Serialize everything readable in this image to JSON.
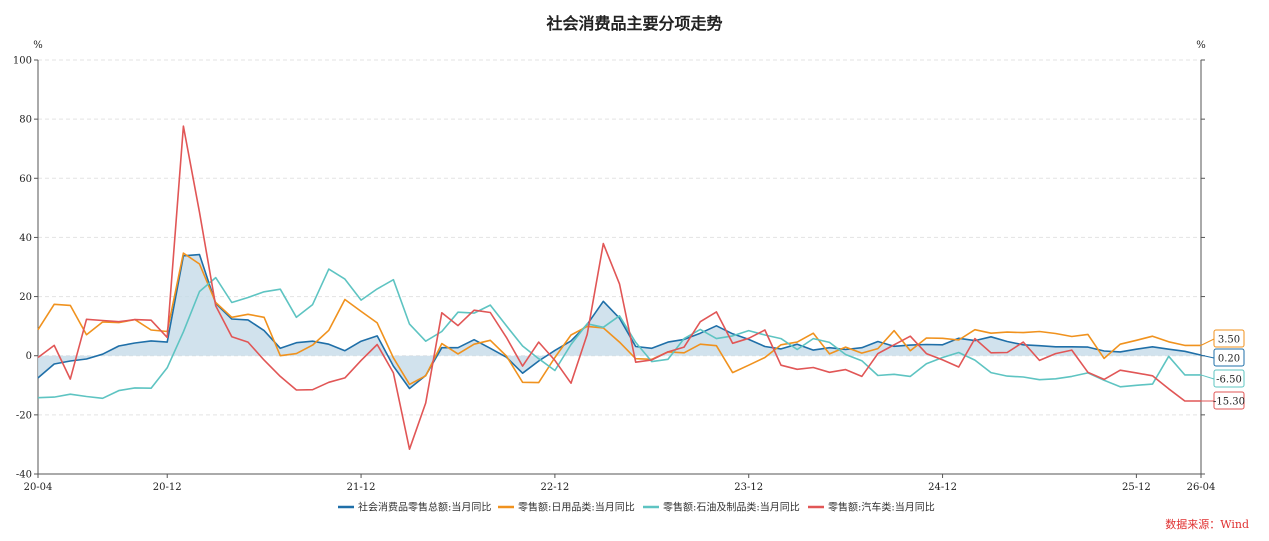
{
  "title": "社会消费品主要分项走势",
  "source": "数据来源：Wind",
  "chart_data": {
    "type": "line",
    "title": "社会消费品主要分项走势",
    "ylabel_left": "%",
    "ylabel_right": "%",
    "ylim": [
      -40,
      100
    ],
    "yticks": [
      100,
      80,
      60,
      40,
      20,
      0,
      -20,
      -40
    ],
    "grid": true,
    "legend_position": "bottom",
    "x_tick_labels": [
      {
        "label": "20-04",
        "index": 0
      },
      {
        "label": "20-12",
        "index": 8
      },
      {
        "label": "21-12",
        "index": 20
      },
      {
        "label": "22-12",
        "index": 32
      },
      {
        "label": "23-12",
        "index": 44
      },
      {
        "label": "24-12",
        "index": 56
      },
      {
        "label": "25-12",
        "index": 68
      },
      {
        "label": "26-04",
        "index": 72
      }
    ],
    "n_points": 73,
    "series": [
      {
        "name": "社会消费品零售总额:当月同比",
        "color": "#1f6fa8",
        "area": true,
        "end_label": "0.20",
        "values": [
          -7.5,
          -2.8,
          -1.8,
          -1.1,
          0.5,
          3.3,
          4.3,
          5.0,
          4.6,
          33.8,
          34.2,
          17.7,
          12.4,
          12.1,
          8.5,
          2.5,
          4.4,
          4.9,
          3.9,
          1.7,
          4.9,
          6.7,
          -3.5,
          -11.1,
          -6.7,
          2.7,
          2.7,
          5.4,
          2.5,
          -0.5,
          -5.9,
          -1.8,
          1.8,
          5.0,
          10.6,
          18.4,
          12.7,
          3.1,
          2.5,
          4.6,
          5.5,
          7.6,
          10.1,
          7.4,
          5.5,
          3.1,
          2.3,
          3.9,
          1.9,
          2.7,
          2.1,
          2.7,
          4.8,
          3.2,
          3.6,
          3.8,
          3.7,
          5.9,
          5.1,
          6.4,
          4.8,
          3.7,
          3.4,
          3.0,
          3.0,
          2.9,
          1.6,
          1.3,
          2.2,
          3.0,
          2.2,
          1.5,
          0.2
        ]
      },
      {
        "name": "零售额:日用品类:当月同比",
        "color": "#f0921e",
        "area": false,
        "end_label": "3.50",
        "values": [
          8.8,
          17.4,
          17.0,
          7.1,
          11.4,
          11.2,
          12.2,
          8.7,
          8.2,
          34.7,
          31.0,
          18.0,
          13.0,
          14.0,
          13.0,
          0.0,
          0.7,
          3.6,
          8.6,
          19.0,
          15.0,
          11.1,
          -0.7,
          -9.7,
          -6.8,
          4.1,
          0.6,
          3.9,
          5.2,
          -0.1,
          -9.0,
          -9.1,
          -0.6,
          7.0,
          9.9,
          9.4,
          4.6,
          -1.0,
          -1.2,
          1.3,
          1.0,
          3.9,
          3.4,
          -5.7,
          -3.2,
          -0.6,
          3.7,
          4.6,
          7.6,
          0.6,
          2.9,
          0.9,
          2.4,
          8.5,
          1.7,
          6.0,
          5.9,
          5.3,
          8.8,
          7.6,
          8.0,
          7.8,
          8.2,
          7.5,
          6.5,
          7.2,
          -0.9,
          3.9,
          5.2,
          6.6,
          4.7,
          3.5,
          3.5
        ]
      },
      {
        "name": "零售额:石油及制品类:当月同比",
        "color": "#5ec4c2",
        "area": false,
        "end_label": "-6.50",
        "values": [
          -14.2,
          -14.0,
          -13.0,
          -13.8,
          -14.4,
          -11.8,
          -10.9,
          -11.0,
          -4.1,
          8.1,
          21.7,
          26.4,
          18.0,
          19.7,
          21.6,
          22.5,
          13.0,
          17.3,
          29.3,
          25.9,
          18.8,
          22.6,
          25.7,
          10.7,
          4.9,
          8.2,
          14.7,
          14.4,
          17.1,
          10.1,
          3.3,
          -1.0,
          -5.0,
          3.8,
          10.8,
          9.6,
          13.5,
          4.5,
          -2.0,
          -1.2,
          5.8,
          8.9,
          5.8,
          6.7,
          8.5,
          7.0,
          5.8,
          2.1,
          5.8,
          4.5,
          0.4,
          -1.7,
          -6.7,
          -6.3,
          -7.0,
          -2.7,
          -0.6,
          1.1,
          -1.5,
          -5.7,
          -6.9,
          -7.2,
          -8.1,
          -7.8,
          -7.0,
          -5.8,
          -8.3,
          -10.5,
          -10.0,
          -9.6,
          -0.2,
          -6.5,
          -6.5
        ]
      },
      {
        "name": "零售额:汽车类:当月同比",
        "color": "#e15656",
        "area": false,
        "end_label": "-15.30",
        "values": [
          -0.6,
          3.5,
          -7.9,
          12.3,
          11.9,
          11.5,
          12.2,
          12.0,
          6.2,
          77.6,
          48.5,
          16.9,
          6.4,
          4.6,
          -1.5,
          -7.0,
          -11.6,
          -11.5,
          -9.0,
          -7.5,
          -1.6,
          3.8,
          -5.8,
          -31.6,
          -16.0,
          14.5,
          10.2,
          15.4,
          14.6,
          6.2,
          -3.5,
          4.6,
          -1.6,
          -9.3,
          7.2,
          37.9,
          24.3,
          -2.2,
          -1.4,
          1.3,
          2.9,
          11.5,
          14.8,
          4.2,
          5.9,
          8.7,
          -3.2,
          -4.6,
          -4.0,
          -5.6,
          -4.7,
          -7.0,
          0.7,
          3.7,
          6.6,
          0.7,
          -1.4,
          -3.8,
          5.8,
          1.0,
          1.1,
          4.6,
          -1.6,
          0.7,
          1.9,
          -5.6,
          -8.0,
          -4.9,
          -5.8,
          -6.8,
          -11.2,
          -15.3,
          -15.3
        ]
      }
    ]
  }
}
